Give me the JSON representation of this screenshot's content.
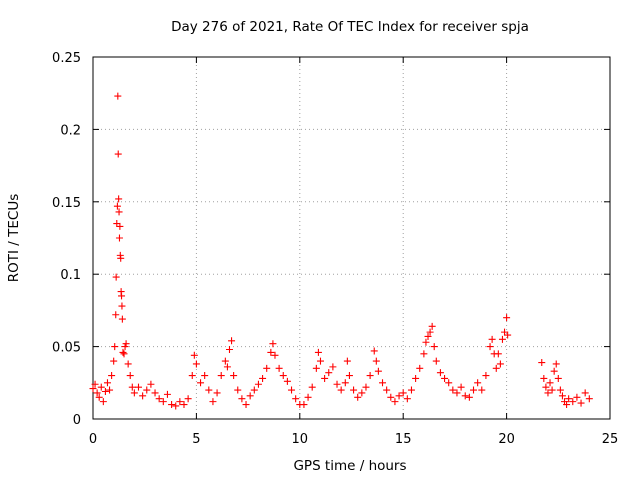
{
  "chart_data": {
    "type": "scatter",
    "title": "Day 276 of 2021, Rate Of TEC Index for receiver spja",
    "xlabel": "GPS time / hours",
    "ylabel": "ROTI / TECUs",
    "xlim": [
      0,
      25
    ],
    "ylim": [
      0,
      0.25
    ],
    "xticks": [
      0,
      5,
      10,
      15,
      20,
      25
    ],
    "yticks": [
      0,
      0.05,
      0.1,
      0.15,
      0.2,
      0.25
    ],
    "xtick_labels": [
      "0",
      "5",
      "10",
      "15",
      "20",
      "25"
    ],
    "ytick_labels": [
      "0",
      "0.05",
      "0.1",
      "0.15",
      "0.2",
      "0.25"
    ],
    "grid": true,
    "marker": "+",
    "color": "#ff0000",
    "series": [
      {
        "name": "ROTI",
        "points": [
          [
            0.0,
            0.021
          ],
          [
            0.1,
            0.024
          ],
          [
            0.2,
            0.018
          ],
          [
            0.3,
            0.015
          ],
          [
            0.4,
            0.022
          ],
          [
            0.5,
            0.012
          ],
          [
            0.6,
            0.019
          ],
          [
            0.7,
            0.025
          ],
          [
            0.8,
            0.02
          ],
          [
            0.9,
            0.03
          ],
          [
            1.0,
            0.04
          ],
          [
            1.05,
            0.05
          ],
          [
            1.1,
            0.072
          ],
          [
            1.12,
            0.098
          ],
          [
            1.15,
            0.135
          ],
          [
            1.18,
            0.147
          ],
          [
            1.2,
            0.223
          ],
          [
            1.22,
            0.183
          ],
          [
            1.24,
            0.152
          ],
          [
            1.26,
            0.143
          ],
          [
            1.28,
            0.125
          ],
          [
            1.3,
            0.133
          ],
          [
            1.32,
            0.113
          ],
          [
            1.34,
            0.111
          ],
          [
            1.36,
            0.088
          ],
          [
            1.38,
            0.085
          ],
          [
            1.4,
            0.078
          ],
          [
            1.42,
            0.069
          ],
          [
            1.45,
            0.046
          ],
          [
            1.5,
            0.045
          ],
          [
            1.55,
            0.05
          ],
          [
            1.6,
            0.052
          ],
          [
            1.7,
            0.038
          ],
          [
            1.8,
            0.03
          ],
          [
            1.9,
            0.022
          ],
          [
            2.0,
            0.018
          ],
          [
            2.2,
            0.022
          ],
          [
            2.4,
            0.016
          ],
          [
            2.6,
            0.02
          ],
          [
            2.8,
            0.024
          ],
          [
            3.0,
            0.018
          ],
          [
            3.2,
            0.014
          ],
          [
            3.4,
            0.012
          ],
          [
            3.6,
            0.017
          ],
          [
            3.8,
            0.01
          ],
          [
            4.0,
            0.009
          ],
          [
            4.2,
            0.012
          ],
          [
            4.4,
            0.01
          ],
          [
            4.6,
            0.014
          ],
          [
            4.8,
            0.03
          ],
          [
            4.9,
            0.044
          ],
          [
            5.0,
            0.038
          ],
          [
            5.2,
            0.025
          ],
          [
            5.4,
            0.03
          ],
          [
            5.6,
            0.02
          ],
          [
            5.8,
            0.012
          ],
          [
            6.0,
            0.018
          ],
          [
            6.2,
            0.03
          ],
          [
            6.4,
            0.04
          ],
          [
            6.5,
            0.036
          ],
          [
            6.6,
            0.048
          ],
          [
            6.7,
            0.054
          ],
          [
            6.8,
            0.03
          ],
          [
            7.0,
            0.02
          ],
          [
            7.2,
            0.014
          ],
          [
            7.4,
            0.01
          ],
          [
            7.6,
            0.016
          ],
          [
            7.8,
            0.02
          ],
          [
            8.0,
            0.024
          ],
          [
            8.2,
            0.028
          ],
          [
            8.4,
            0.035
          ],
          [
            8.6,
            0.046
          ],
          [
            8.7,
            0.052
          ],
          [
            8.8,
            0.044
          ],
          [
            9.0,
            0.035
          ],
          [
            9.2,
            0.03
          ],
          [
            9.4,
            0.026
          ],
          [
            9.6,
            0.02
          ],
          [
            9.8,
            0.014
          ],
          [
            10.0,
            0.01
          ],
          [
            10.2,
            0.01
          ],
          [
            10.4,
            0.015
          ],
          [
            10.6,
            0.022
          ],
          [
            10.8,
            0.035
          ],
          [
            10.9,
            0.046
          ],
          [
            11.0,
            0.04
          ],
          [
            11.2,
            0.028
          ],
          [
            11.4,
            0.032
          ],
          [
            11.6,
            0.036
          ],
          [
            11.8,
            0.024
          ],
          [
            12.0,
            0.02
          ],
          [
            12.2,
            0.025
          ],
          [
            12.3,
            0.04
          ],
          [
            12.4,
            0.03
          ],
          [
            12.6,
            0.02
          ],
          [
            12.8,
            0.015
          ],
          [
            13.0,
            0.018
          ],
          [
            13.2,
            0.022
          ],
          [
            13.4,
            0.03
          ],
          [
            13.6,
            0.047
          ],
          [
            13.7,
            0.04
          ],
          [
            13.8,
            0.033
          ],
          [
            14.0,
            0.025
          ],
          [
            14.2,
            0.02
          ],
          [
            14.4,
            0.015
          ],
          [
            14.6,
            0.012
          ],
          [
            14.8,
            0.016
          ],
          [
            15.0,
            0.018
          ],
          [
            15.2,
            0.014
          ],
          [
            15.4,
            0.02
          ],
          [
            15.6,
            0.028
          ],
          [
            15.8,
            0.035
          ],
          [
            16.0,
            0.045
          ],
          [
            16.1,
            0.053
          ],
          [
            16.2,
            0.057
          ],
          [
            16.3,
            0.06
          ],
          [
            16.4,
            0.064
          ],
          [
            16.5,
            0.05
          ],
          [
            16.6,
            0.04
          ],
          [
            16.8,
            0.032
          ],
          [
            17.0,
            0.028
          ],
          [
            17.2,
            0.025
          ],
          [
            17.4,
            0.02
          ],
          [
            17.6,
            0.018
          ],
          [
            17.8,
            0.022
          ],
          [
            18.0,
            0.016
          ],
          [
            18.2,
            0.015
          ],
          [
            18.4,
            0.02
          ],
          [
            18.6,
            0.025
          ],
          [
            18.8,
            0.02
          ],
          [
            19.0,
            0.03
          ],
          [
            19.2,
            0.05
          ],
          [
            19.3,
            0.055
          ],
          [
            19.4,
            0.045
          ],
          [
            19.5,
            0.035
          ],
          [
            19.6,
            0.045
          ],
          [
            19.7,
            0.038
          ],
          [
            19.8,
            0.055
          ],
          [
            19.9,
            0.06
          ],
          [
            20.0,
            0.07
          ],
          [
            20.05,
            0.058
          ],
          [
            21.7,
            0.039
          ],
          [
            21.8,
            0.028
          ],
          [
            21.9,
            0.022
          ],
          [
            22.0,
            0.018
          ],
          [
            22.1,
            0.025
          ],
          [
            22.2,
            0.02
          ],
          [
            22.3,
            0.033
          ],
          [
            22.4,
            0.038
          ],
          [
            22.5,
            0.028
          ],
          [
            22.6,
            0.02
          ],
          [
            22.7,
            0.016
          ],
          [
            22.8,
            0.012
          ],
          [
            22.9,
            0.01
          ],
          [
            23.0,
            0.014
          ],
          [
            23.2,
            0.012
          ],
          [
            23.4,
            0.015
          ],
          [
            23.6,
            0.011
          ],
          [
            23.8,
            0.018
          ],
          [
            24.0,
            0.014
          ]
        ]
      }
    ]
  }
}
